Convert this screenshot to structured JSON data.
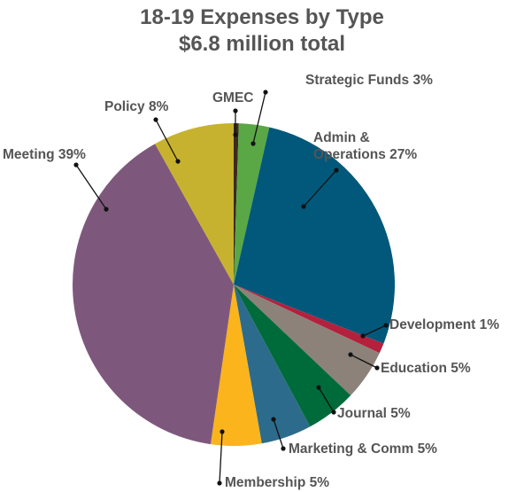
{
  "chart_data": {
    "type": "pie",
    "title": "18-19 Expenses by Type",
    "subtitle": "$6.8 million total",
    "categories": [
      "GMEC",
      "Strategic Funds",
      "Admin & Operations",
      "Development",
      "Education",
      "Journal",
      "Marketing & Comm",
      "Membership",
      "Meeting",
      "Policy"
    ],
    "values": [
      0.5,
      3,
      27,
      1,
      5,
      5,
      5,
      5,
      39,
      8
    ],
    "value_labels": [
      null,
      "3%",
      "27%",
      "1%",
      "5%",
      "5%",
      "5%",
      "5%",
      "39%",
      "8%"
    ],
    "colors": [
      "#3b2b1c",
      "#5aa745",
      "#02587a",
      "#b3213d",
      "#8c8279",
      "#006b3a",
      "#2c6b8b",
      "#fbb41c",
      "#7e587c",
      "#c6b22f"
    ]
  }
}
